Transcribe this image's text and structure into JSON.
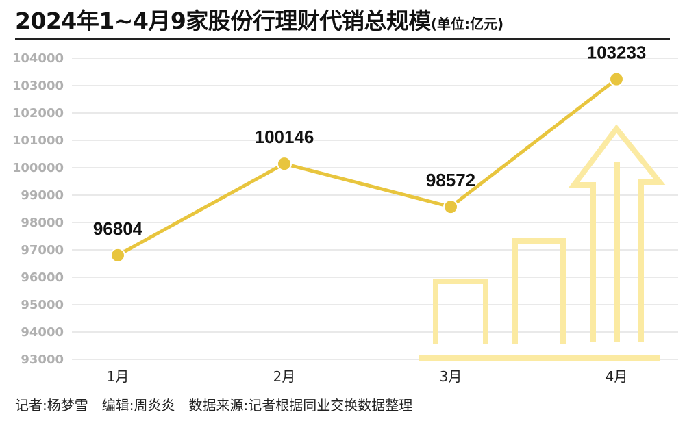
{
  "title": "2024年1~4月9家股份行理财代销总规模",
  "unit": "(单位:亿元)",
  "footer": "记者:杨梦雪　编辑:周炎炎　数据来源:记者根据同业交换数据整理",
  "colors": {
    "line": "#e8c53e",
    "decor": "#fbeaa2",
    "grid": "#e2e2e2"
  },
  "chart_data": {
    "type": "line",
    "categories": [
      "1月",
      "2月",
      "3月",
      "4月"
    ],
    "values": [
      96804,
      100146,
      98572,
      103233
    ],
    "data_labels": [
      "96804",
      "100146",
      "98572",
      "103233"
    ],
    "ylim": [
      93000,
      104000
    ],
    "yticks": [
      "104000",
      "103000",
      "102000",
      "101000",
      "100000",
      "99000",
      "98000",
      "97000",
      "96000",
      "95000",
      "94000",
      "93000"
    ],
    "grid": true,
    "legend": "none",
    "xlabel": "",
    "ylabel": ""
  }
}
